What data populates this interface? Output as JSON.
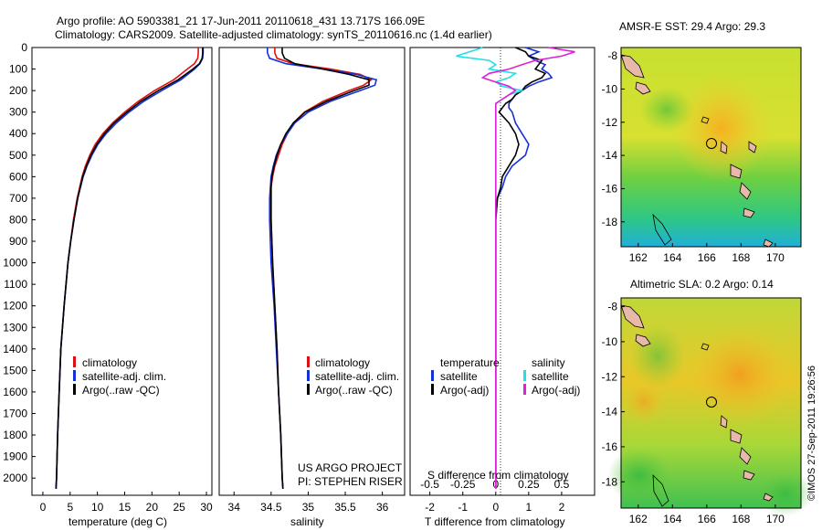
{
  "header": {
    "line1": "Argo profile: AO 5903381_21 17-Jun-2011 20110618_431 13.717S 166.09E",
    "line2": "Climatology: CARS2009. Satellite-adjusted climatology: synTS_20110616.nc (1.4d earlier)"
  },
  "credit": "©IMOS 27-Sep-2011 19:26:56",
  "colors": {
    "climatology": "#e01010",
    "satellite": "#1530d8",
    "argo": "#000000",
    "salinity_sat": "#20e0e8",
    "salinity_argo": "#e020d8"
  },
  "chart_data": [
    {
      "type": "line",
      "title": "",
      "xlabel": "temperature (deg C)",
      "ylabel": "",
      "xlim": [
        -2,
        31
      ],
      "ylim": [
        2080,
        0
      ],
      "xticks": [
        "0",
        "5",
        "10",
        "15",
        "20",
        "25",
        "30"
      ],
      "yticks": [
        "0",
        "100",
        "200",
        "300",
        "400",
        "500",
        "600",
        "700",
        "800",
        "900",
        "1000",
        "1100",
        "1200",
        "1300",
        "1400",
        "1500",
        "1600",
        "1700",
        "1800",
        "1900",
        "2000"
      ],
      "legend": [
        "climatology",
        "satellite-adj. clim.",
        "Argo(..raw -QC)"
      ],
      "depth": [
        0,
        25,
        50,
        75,
        100,
        150,
        200,
        250,
        300,
        350,
        400,
        450,
        500,
        550,
        600,
        700,
        800,
        900,
        1000,
        1200,
        1400,
        1600,
        1800,
        2000,
        2050
      ],
      "series": [
        {
          "name": "climatology",
          "values": [
            28.5,
            28.5,
            28.4,
            27.8,
            26.5,
            24.0,
            20.5,
            17.5,
            15.0,
            12.8,
            11.0,
            9.6,
            8.6,
            7.8,
            7.2,
            6.3,
            5.6,
            5.1,
            4.6,
            3.9,
            3.3,
            3.0,
            2.7,
            2.5,
            2.4
          ]
        },
        {
          "name": "satellite-adj. clim.",
          "values": [
            29.4,
            29.4,
            29.3,
            28.8,
            27.8,
            25.3,
            21.8,
            18.5,
            15.8,
            13.5,
            11.6,
            10.1,
            9.0,
            8.1,
            7.4,
            6.4,
            5.7,
            5.1,
            4.6,
            3.9,
            3.3,
            3.0,
            2.7,
            2.5,
            2.4
          ]
        },
        {
          "name": "Argo(..raw -QC)",
          "values": [
            29.3,
            29.3,
            29.2,
            28.7,
            27.5,
            24.8,
            21.2,
            18.0,
            15.4,
            13.1,
            11.3,
            9.9,
            8.8,
            8.0,
            7.3,
            6.4,
            5.7,
            5.1,
            4.6,
            3.9,
            3.3,
            3.0,
            2.7,
            2.5,
            2.4
          ]
        }
      ]
    },
    {
      "type": "line",
      "xlabel": "salinity",
      "xlim": [
        33.8,
        36.3
      ],
      "ylim": [
        2080,
        0
      ],
      "xticks": [
        "34",
        "34.5",
        "35",
        "35.5",
        "36"
      ],
      "legend": [
        "climatology",
        "satellite-adj. clim.",
        "Argo(..raw -QC)"
      ],
      "annotation1": "US ARGO PROJECT",
      "annotation2": "PI: STEPHEN RISER",
      "depth": [
        0,
        25,
        50,
        75,
        100,
        125,
        150,
        175,
        200,
        250,
        300,
        350,
        400,
        450,
        500,
        550,
        600,
        650,
        700,
        800,
        1000,
        1200,
        1400,
        1600,
        1800,
        2000,
        2050
      ],
      "series": [
        {
          "name": "climatology",
          "values": [
            34.55,
            34.55,
            34.58,
            34.8,
            35.3,
            35.7,
            35.85,
            35.75,
            35.55,
            35.2,
            34.95,
            34.8,
            34.72,
            34.65,
            34.6,
            34.55,
            34.52,
            34.5,
            34.5,
            34.5,
            34.52,
            34.55,
            34.58,
            34.6,
            34.63,
            34.65,
            34.66
          ]
        },
        {
          "name": "satellite-adj. clim.",
          "values": [
            34.45,
            34.45,
            34.48,
            34.7,
            35.2,
            35.65,
            35.92,
            35.9,
            35.7,
            35.3,
            35.0,
            34.82,
            34.72,
            34.63,
            34.57,
            34.53,
            34.5,
            34.49,
            34.48,
            34.48,
            34.5,
            34.54,
            34.57,
            34.6,
            34.63,
            34.65,
            34.66
          ]
        },
        {
          "name": "Argo(..raw -QC)",
          "values": [
            34.65,
            34.65,
            34.68,
            34.82,
            35.2,
            35.55,
            35.82,
            35.82,
            35.62,
            35.25,
            34.96,
            34.8,
            34.7,
            34.63,
            34.58,
            34.54,
            34.51,
            34.5,
            34.5,
            34.5,
            34.52,
            34.55,
            34.58,
            34.6,
            34.63,
            34.65,
            34.66
          ]
        }
      ]
    },
    {
      "type": "line",
      "xlabel": "T difference from climatology",
      "xlabel2": "S difference from climatology",
      "xlim": [
        -2.6,
        3.0
      ],
      "ylim": [
        2080,
        0
      ],
      "xticks": [
        "-2",
        "-1",
        "0",
        "1",
        "2"
      ],
      "xticks_top": [
        "-0.5",
        "-0.25",
        "0",
        "0.25",
        "0.5"
      ],
      "legend_headers": [
        "temperature",
        "salinity"
      ],
      "legend": [
        "satellite",
        "Argo(-adj)",
        "satellite",
        "Argo(-adj)"
      ],
      "depth": [
        0,
        20,
        40,
        60,
        80,
        100,
        120,
        140,
        160,
        180,
        200,
        220,
        240,
        260,
        280,
        300,
        350,
        400,
        450,
        500,
        550,
        600,
        650,
        700,
        800,
        1000,
        1500,
        2050
      ],
      "series": [
        {
          "name": "T satellite",
          "values": [
            0.9,
            1.3,
            1.0,
            1.2,
            1.5,
            1.4,
            1.6,
            1.7,
            1.3,
            1.0,
            0.8,
            0.6,
            0.5,
            0.4,
            0.4,
            0.5,
            0.6,
            0.8,
            1.0,
            0.9,
            0.5,
            0.3,
            0.2,
            0.05,
            0.0,
            0.0,
            0.0,
            0.0
          ]
        },
        {
          "name": "T Argo(-adj)",
          "values": [
            0.6,
            0.9,
            1.0,
            1.4,
            1.3,
            1.2,
            1.5,
            1.4,
            1.1,
            0.9,
            0.8,
            0.6,
            0.5,
            0.3,
            0.2,
            0.1,
            0.4,
            0.6,
            0.7,
            0.6,
            0.4,
            0.2,
            0.15,
            0.05,
            0.0,
            0.0,
            0.0,
            0.0
          ]
        },
        {
          "name": "S satellite",
          "values": [
            -0.1,
            -0.2,
            -0.3,
            -0.05,
            0.0,
            -0.05,
            0.15,
            0.1,
            0.0,
            0.05,
            0.2,
            0.1,
            0.05,
            0.0,
            0.0,
            0.0,
            0.0,
            0.0,
            0.0,
            0.0,
            0.0,
            0.0,
            0.0,
            0.0,
            0.0,
            0.0,
            0.0,
            0.0
          ]
        },
        {
          "name": "S Argo(-adj)",
          "values": [
            0.4,
            0.6,
            0.5,
            0.3,
            0.2,
            0.1,
            -0.05,
            -0.1,
            0.0,
            0.1,
            0.15,
            0.1,
            0.05,
            0.0,
            0.0,
            0.0,
            0.0,
            0.0,
            0.0,
            0.0,
            0.0,
            0.0,
            0.0,
            0.0,
            0.0,
            0.0,
            0.0,
            0.0
          ]
        }
      ]
    },
    {
      "type": "heatmap",
      "title": "AMSR-E SST: 29.4 Argo: 29.3",
      "xlim": [
        161,
        171.5
      ],
      "ylim": [
        -19.5,
        -7.5
      ],
      "xticks": [
        "162",
        "164",
        "166",
        "168",
        "170"
      ],
      "yticks": [
        "-8",
        "-10",
        "-12",
        "-14",
        "-16",
        "-18"
      ],
      "marker": {
        "lon": 166.09,
        "lat": -13.717
      }
    },
    {
      "type": "heatmap",
      "title": "Altimetric SLA: 0.2 Argo: 0.14",
      "xlim": [
        161,
        171.5
      ],
      "ylim": [
        -19.5,
        -7.5
      ],
      "xticks": [
        "162",
        "164",
        "166",
        "168",
        "170"
      ],
      "yticks": [
        "-8",
        "-10",
        "-12",
        "-14",
        "-16",
        "-18"
      ],
      "marker": {
        "lon": 166.09,
        "lat": -13.717
      }
    }
  ]
}
